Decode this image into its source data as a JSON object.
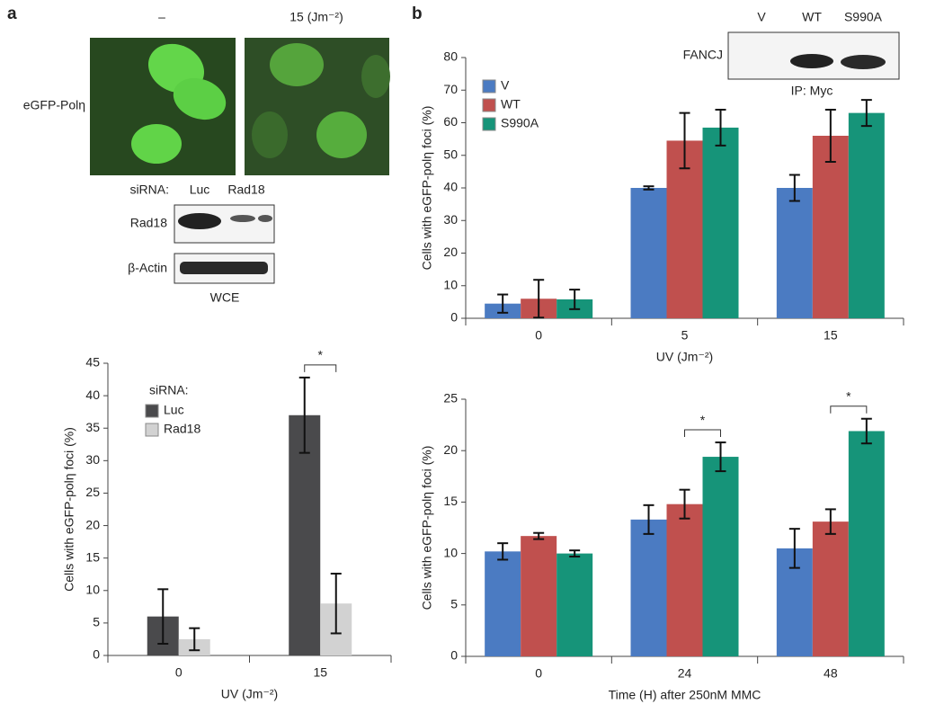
{
  "panel_labels": [
    "a",
    "b"
  ],
  "micrographs": {
    "row_label": "eGFP-Polη",
    "columns": [
      "–",
      "15 (Jm⁻²)"
    ]
  },
  "blot_a": {
    "header": "siRNA:",
    "lanes": [
      "Luc",
      "Rad18"
    ],
    "rows": [
      "Rad18",
      "β-Actin"
    ],
    "caption": "WCE"
  },
  "blot_b": {
    "lanes": [
      "V",
      "WT",
      "S990A"
    ],
    "row": "FANCJ",
    "caption": "IP: Myc"
  },
  "chart_data": [
    {
      "type": "bar",
      "xlabel": "UV (Jm⁻²)",
      "ylabel": "Cells with eGFP-polη foci (%)",
      "categories": [
        "0",
        "15"
      ],
      "series": [
        {
          "name": "Luc",
          "color": "#4a4a4c",
          "values": [
            6,
            37
          ],
          "errors": [
            4.2,
            5.8
          ]
        },
        {
          "name": "Rad18",
          "color": "#d2d2d2",
          "values": [
            2.5,
            8
          ],
          "errors": [
            1.7,
            4.6
          ]
        }
      ],
      "ylim": [
        0,
        45
      ],
      "yticks": [
        0,
        5,
        10,
        15,
        20,
        25,
        30,
        35,
        40,
        45
      ],
      "legend": "upper left",
      "legend_title": "siRNA:",
      "annotations": [
        "*"
      ]
    },
    {
      "type": "bar",
      "xlabel": "UV (Jm⁻²)",
      "ylabel": "Cells with eGFP-polη foci (%)",
      "categories": [
        "0",
        "5",
        "15"
      ],
      "series": [
        {
          "name": "V",
          "color": "#4b7bc2",
          "values": [
            4.5,
            40,
            40
          ],
          "errors": [
            2.8,
            0.5,
            4
          ]
        },
        {
          "name": "WT",
          "color": "#c0504e",
          "values": [
            6,
            54.5,
            56
          ],
          "errors": [
            5.8,
            8.5,
            8
          ]
        },
        {
          "name": "S990A",
          "color": "#169479",
          "values": [
            5.8,
            58.5,
            63
          ],
          "errors": [
            3,
            5.5,
            4
          ]
        }
      ],
      "ylim": [
        0,
        80
      ],
      "yticks": [
        0,
        10,
        20,
        30,
        40,
        50,
        60,
        70,
        80
      ],
      "legend": "upper left"
    },
    {
      "type": "bar",
      "xlabel": "Time (H) after 250nM MMC",
      "ylabel": "Cells with eGFP-polη foci (%)",
      "categories": [
        "0",
        "24",
        "48"
      ],
      "series": [
        {
          "name": "V",
          "color": "#4b7bc2",
          "values": [
            10.2,
            13.3,
            10.5
          ],
          "errors": [
            0.8,
            1.4,
            1.9
          ]
        },
        {
          "name": "WT",
          "color": "#c0504e",
          "values": [
            11.7,
            14.8,
            13.1
          ],
          "errors": [
            0.3,
            1.4,
            1.2
          ]
        },
        {
          "name": "S990A",
          "color": "#169479",
          "values": [
            10,
            19.4,
            21.9
          ],
          "errors": [
            0.3,
            1.4,
            1.2
          ]
        }
      ],
      "ylim": [
        0,
        25
      ],
      "yticks": [
        0,
        5,
        10,
        15,
        20,
        25
      ],
      "annotations": [
        "*",
        "*"
      ]
    }
  ]
}
